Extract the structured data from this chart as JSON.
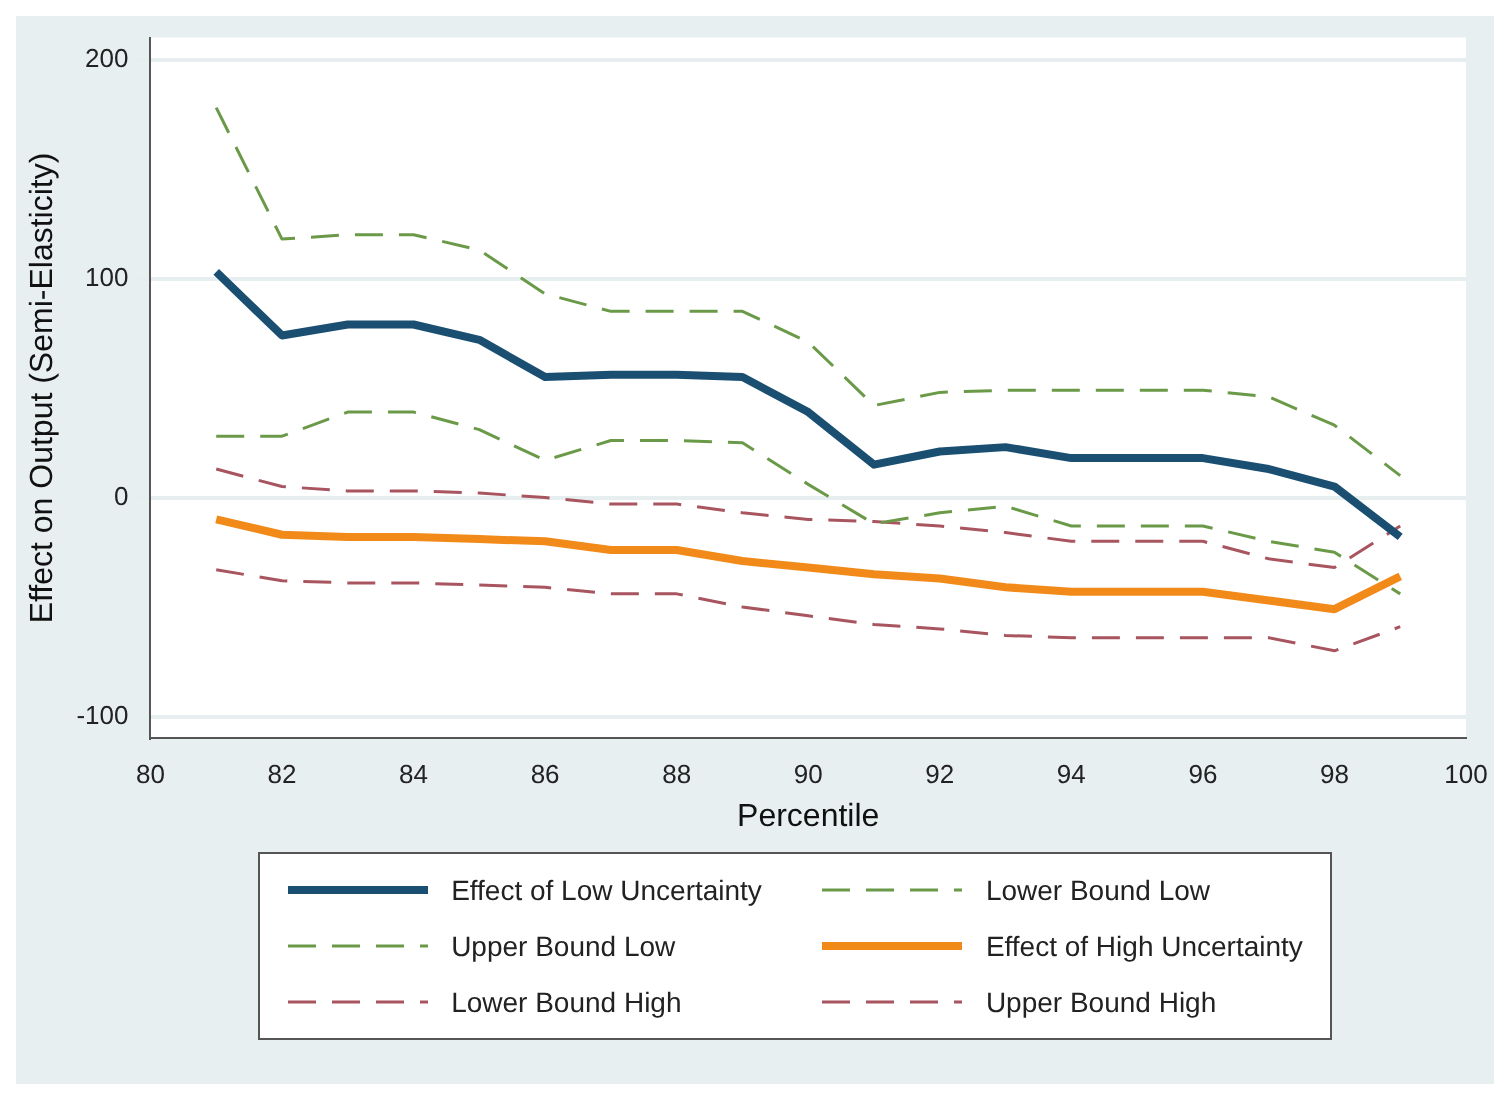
{
  "chart_data": {
    "type": "line",
    "xlabel": "Percentile",
    "ylabel": "Effect on Output (Semi-Elasticity)",
    "x": [
      81,
      82,
      83,
      84,
      85,
      86,
      87,
      88,
      89,
      90,
      91,
      92,
      93,
      94,
      95,
      96,
      97,
      98,
      99
    ],
    "xlim": [
      80,
      100
    ],
    "xticks": [
      80,
      82,
      84,
      86,
      88,
      90,
      92,
      94,
      96,
      98,
      100
    ],
    "ylim": [
      -110,
      210
    ],
    "yticks": [
      -100,
      0,
      100,
      200
    ],
    "grid": "y",
    "legend": "bottom",
    "marker": "none",
    "series": [
      {
        "name": "Effect of Low Uncertainty",
        "color": "#1a4f72",
        "line_style": "solid",
        "values": [
          103,
          74,
          79,
          79,
          72,
          55,
          56,
          56,
          55,
          39,
          15,
          21,
          23,
          18,
          18,
          18,
          13,
          5,
          -18
        ]
      },
      {
        "name": "Lower Bound Low",
        "color": "#6a9a48",
        "line_style": "dashed",
        "values": [
          28,
          28,
          39,
          39,
          31,
          17,
          26,
          26,
          25,
          6,
          -12,
          -7,
          -4,
          -13,
          -13,
          -13,
          -20,
          -25,
          -44
        ]
      },
      {
        "name": "Upper Bound Low",
        "color": "#6a9a48",
        "line_style": "dashed",
        "values": [
          178,
          118,
          120,
          120,
          113,
          93,
          85,
          85,
          85,
          71,
          42,
          48,
          49,
          49,
          49,
          49,
          46,
          33,
          10
        ]
      },
      {
        "name": "Effect of High Uncertainty",
        "color": "#f28a1a",
        "line_style": "solid",
        "values": [
          -10,
          -17,
          -18,
          -18,
          -19,
          -20,
          -24,
          -24,
          -29,
          -32,
          -35,
          -37,
          -41,
          -43,
          -43,
          -43,
          -47,
          -51,
          -36
        ]
      },
      {
        "name": "Lower Bound High",
        "color": "#a85560",
        "line_style": "dashed",
        "values": [
          -33,
          -38,
          -39,
          -39,
          -40,
          -41,
          -44,
          -44,
          -50,
          -54,
          -58,
          -60,
          -63,
          -64,
          -64,
          -64,
          -64,
          -70,
          -59
        ]
      },
      {
        "name": "Upper Bound High",
        "color": "#a85560",
        "line_style": "dashed",
        "values": [
          13,
          5,
          3,
          3,
          2,
          0,
          -3,
          -3,
          -7,
          -10,
          -11,
          -13,
          -16,
          -20,
          -20,
          -20,
          -28,
          -32,
          -13
        ]
      }
    ]
  }
}
